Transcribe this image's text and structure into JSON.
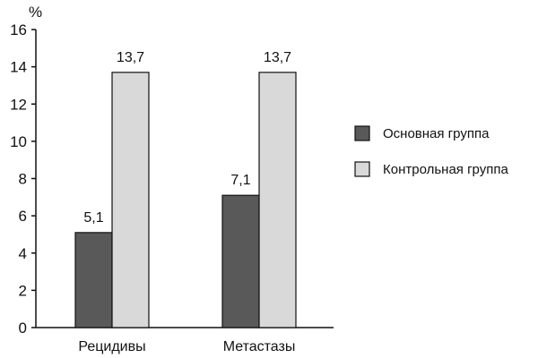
{
  "chart_data": {
    "type": "bar",
    "unit_label": "%",
    "categories": [
      "Рецидивы",
      "Метастазы"
    ],
    "series": [
      {
        "name": "Основная группа",
        "values": [
          5.1,
          7.1
        ],
        "value_labels": [
          "5,1",
          "7,1"
        ],
        "color": "#595959"
      },
      {
        "name": "Контрольная группа",
        "values": [
          13.7,
          13.7
        ],
        "value_labels": [
          "13,7",
          "13,7"
        ],
        "color": "#d9d9d9"
      }
    ],
    "ylim": [
      0,
      16
    ],
    "yticks": [
      0,
      2,
      4,
      6,
      8,
      10,
      12,
      14,
      16
    ],
    "grid": false,
    "legend_position": "right"
  }
}
